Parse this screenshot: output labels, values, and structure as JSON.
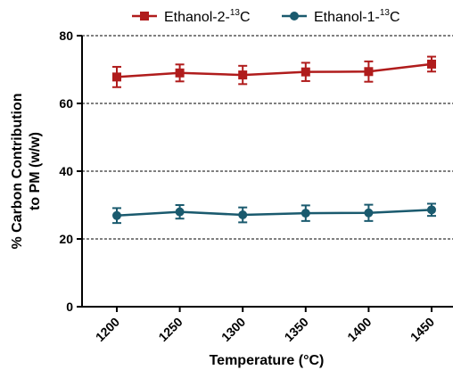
{
  "chart_data": {
    "type": "line",
    "xlabel": "Temperature (°C)",
    "ylabel_line1": "% Carbon Contribution",
    "ylabel_line2": "to PM (w/w)",
    "categories": [
      "1200",
      "1250",
      "1300",
      "1350",
      "1400",
      "1450"
    ],
    "ylim": [
      0,
      80
    ],
    "yticks": [
      "0",
      "20",
      "40",
      "60",
      "80"
    ],
    "grid": "dashed horizontal at 20, 40, 60, 80",
    "legend_position": "top",
    "series": [
      {
        "name": "Ethanol-2-13C",
        "name_prefix": "Ethanol-2-",
        "name_sup": "13",
        "name_suffix": "C",
        "marker": "square",
        "color": "#b01c1c",
        "values": [
          67.8,
          69.0,
          68.4,
          69.3,
          69.4,
          71.6
        ],
        "errors": [
          3.0,
          2.5,
          2.7,
          2.7,
          3.0,
          2.2
        ]
      },
      {
        "name": "Ethanol-1-13C",
        "name_prefix": "Ethanol-1-",
        "name_sup": "13",
        "name_suffix": "C",
        "marker": "circle",
        "color": "#1a5a6e",
        "values": [
          26.9,
          28.0,
          27.1,
          27.6,
          27.7,
          28.6
        ],
        "errors": [
          2.2,
          2.0,
          2.2,
          2.3,
          2.4,
          1.8
        ]
      }
    ]
  }
}
